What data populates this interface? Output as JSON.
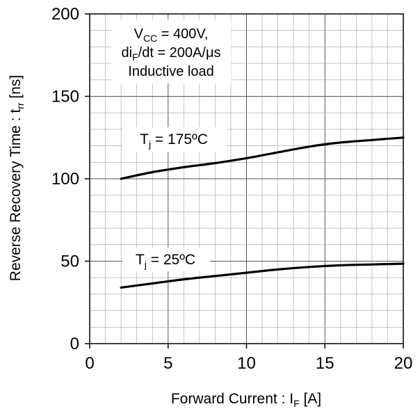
{
  "chart_data": {
    "type": "line",
    "x_axis": {
      "label_main": "Forward Current : I",
      "label_sub": "F",
      "label_unit": " [A]",
      "range": [
        0,
        20
      ],
      "ticks": [
        0,
        5,
        10,
        15,
        20
      ],
      "tick_labels": [
        "0",
        "5",
        "10",
        "15",
        "20"
      ],
      "minor_step": 1
    },
    "y_axis": {
      "label_main": "Reverse Recovery Time : t",
      "label_sub": "rr",
      "label_unit": " [ns]",
      "range": [
        0,
        200
      ],
      "ticks": [
        0,
        50,
        100,
        150,
        200
      ],
      "tick_labels": [
        "0",
        "50",
        "100",
        "150",
        "200"
      ],
      "minor_step": 10
    },
    "grid": true,
    "annotation": {
      "line1_main": "V",
      "line1_sub": "CC",
      "line1_rest": " = 400V,",
      "line2_main": "di",
      "line2_sub": "F",
      "line2_rest": "/dt = 200A/μs",
      "line3": "Inductive load"
    },
    "series": [
      {
        "label_main": "T",
        "label_sub": "j",
        "label_rest": " = 175ºC",
        "x": [
          2,
          4,
          6,
          8,
          10,
          12,
          14,
          16,
          18,
          20
        ],
        "y": [
          100,
          104,
          107,
          109.5,
          112.5,
          116,
          119.5,
          122,
          123.5,
          125
        ]
      },
      {
        "label_main": "T",
        "label_sub": "j",
        "label_rest": " = 25ºC",
        "x": [
          2,
          4,
          6,
          8,
          10,
          12,
          14,
          16,
          18,
          20
        ],
        "y": [
          34,
          36.5,
          39,
          41,
          43,
          45,
          46.5,
          47.5,
          48,
          48.5
        ]
      }
    ]
  }
}
